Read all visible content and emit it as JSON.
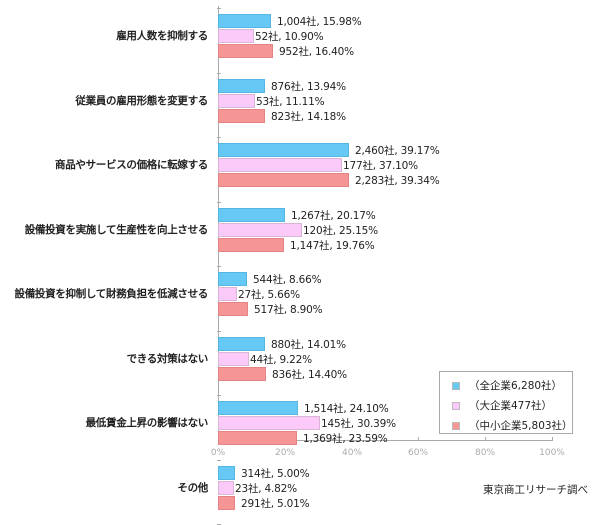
{
  "chart_data": {
    "type": "bar",
    "orientation": "horizontal",
    "title": "",
    "xlabel": "",
    "ylabel": "",
    "xlim": [
      0,
      100
    ],
    "x_ticks": [
      "0%",
      "20%",
      "40%",
      "60%",
      "80%",
      "100%"
    ],
    "grid": false,
    "legend_position": "lower right, inside plot",
    "categories": [
      "雇用人数を抑制する",
      "従業員の雇用形態を変更する",
      "商品やサービスの価格に転嫁する",
      "設備投資を実施して生産性を向上させる",
      "設備投資を抑制して財務負担を低減させる",
      "できる対策はない",
      "最低賃金上昇の影響はない",
      "その他"
    ],
    "series": [
      {
        "name": "（全企業6,280社）",
        "color": "#66c8f5",
        "values": [
          15.98,
          13.94,
          39.17,
          20.17,
          8.66,
          14.01,
          24.1,
          5.0
        ],
        "counts": [
          1004,
          876,
          2460,
          1267,
          544,
          880,
          1514,
          314
        ],
        "labels": [
          "1,004社, 15.98%",
          "876社, 13.94%",
          "2,460社, 39.17%",
          "1,267社, 20.17%",
          "544社, 8.66%",
          "880社, 14.01%",
          "1,514社, 24.10%",
          "314社, 5.00%"
        ]
      },
      {
        "name": "（大企業477社）",
        "color": "#fccaf8",
        "values": [
          10.9,
          11.11,
          37.1,
          25.15,
          5.66,
          9.22,
          30.39,
          4.82
        ],
        "counts": [
          52,
          53,
          177,
          120,
          27,
          44,
          145,
          23
        ],
        "labels": [
          "52社, 10.90%",
          "53社, 11.11%",
          "177社, 37.10%",
          "120社, 25.15%",
          "27社, 5.66%",
          "44社, 9.22%",
          "145社, 30.39%",
          "23社, 4.82%"
        ]
      },
      {
        "name": "（中小企業5,803社）",
        "color": "#f69596",
        "values": [
          16.4,
          14.18,
          39.34,
          19.76,
          8.9,
          14.4,
          23.59,
          5.01
        ],
        "counts": [
          952,
          823,
          2283,
          1147,
          517,
          836,
          1369,
          291
        ],
        "labels": [
          "952社, 16.40%",
          "823社, 14.18%",
          "2,283社, 39.34%",
          "1,147社, 19.76%",
          "517社, 8.90%",
          "836社, 14.40%",
          "1,369社, 23.59%",
          "291社, 5.01%"
        ]
      }
    ],
    "source": "東京商工リサーチ調べ"
  }
}
